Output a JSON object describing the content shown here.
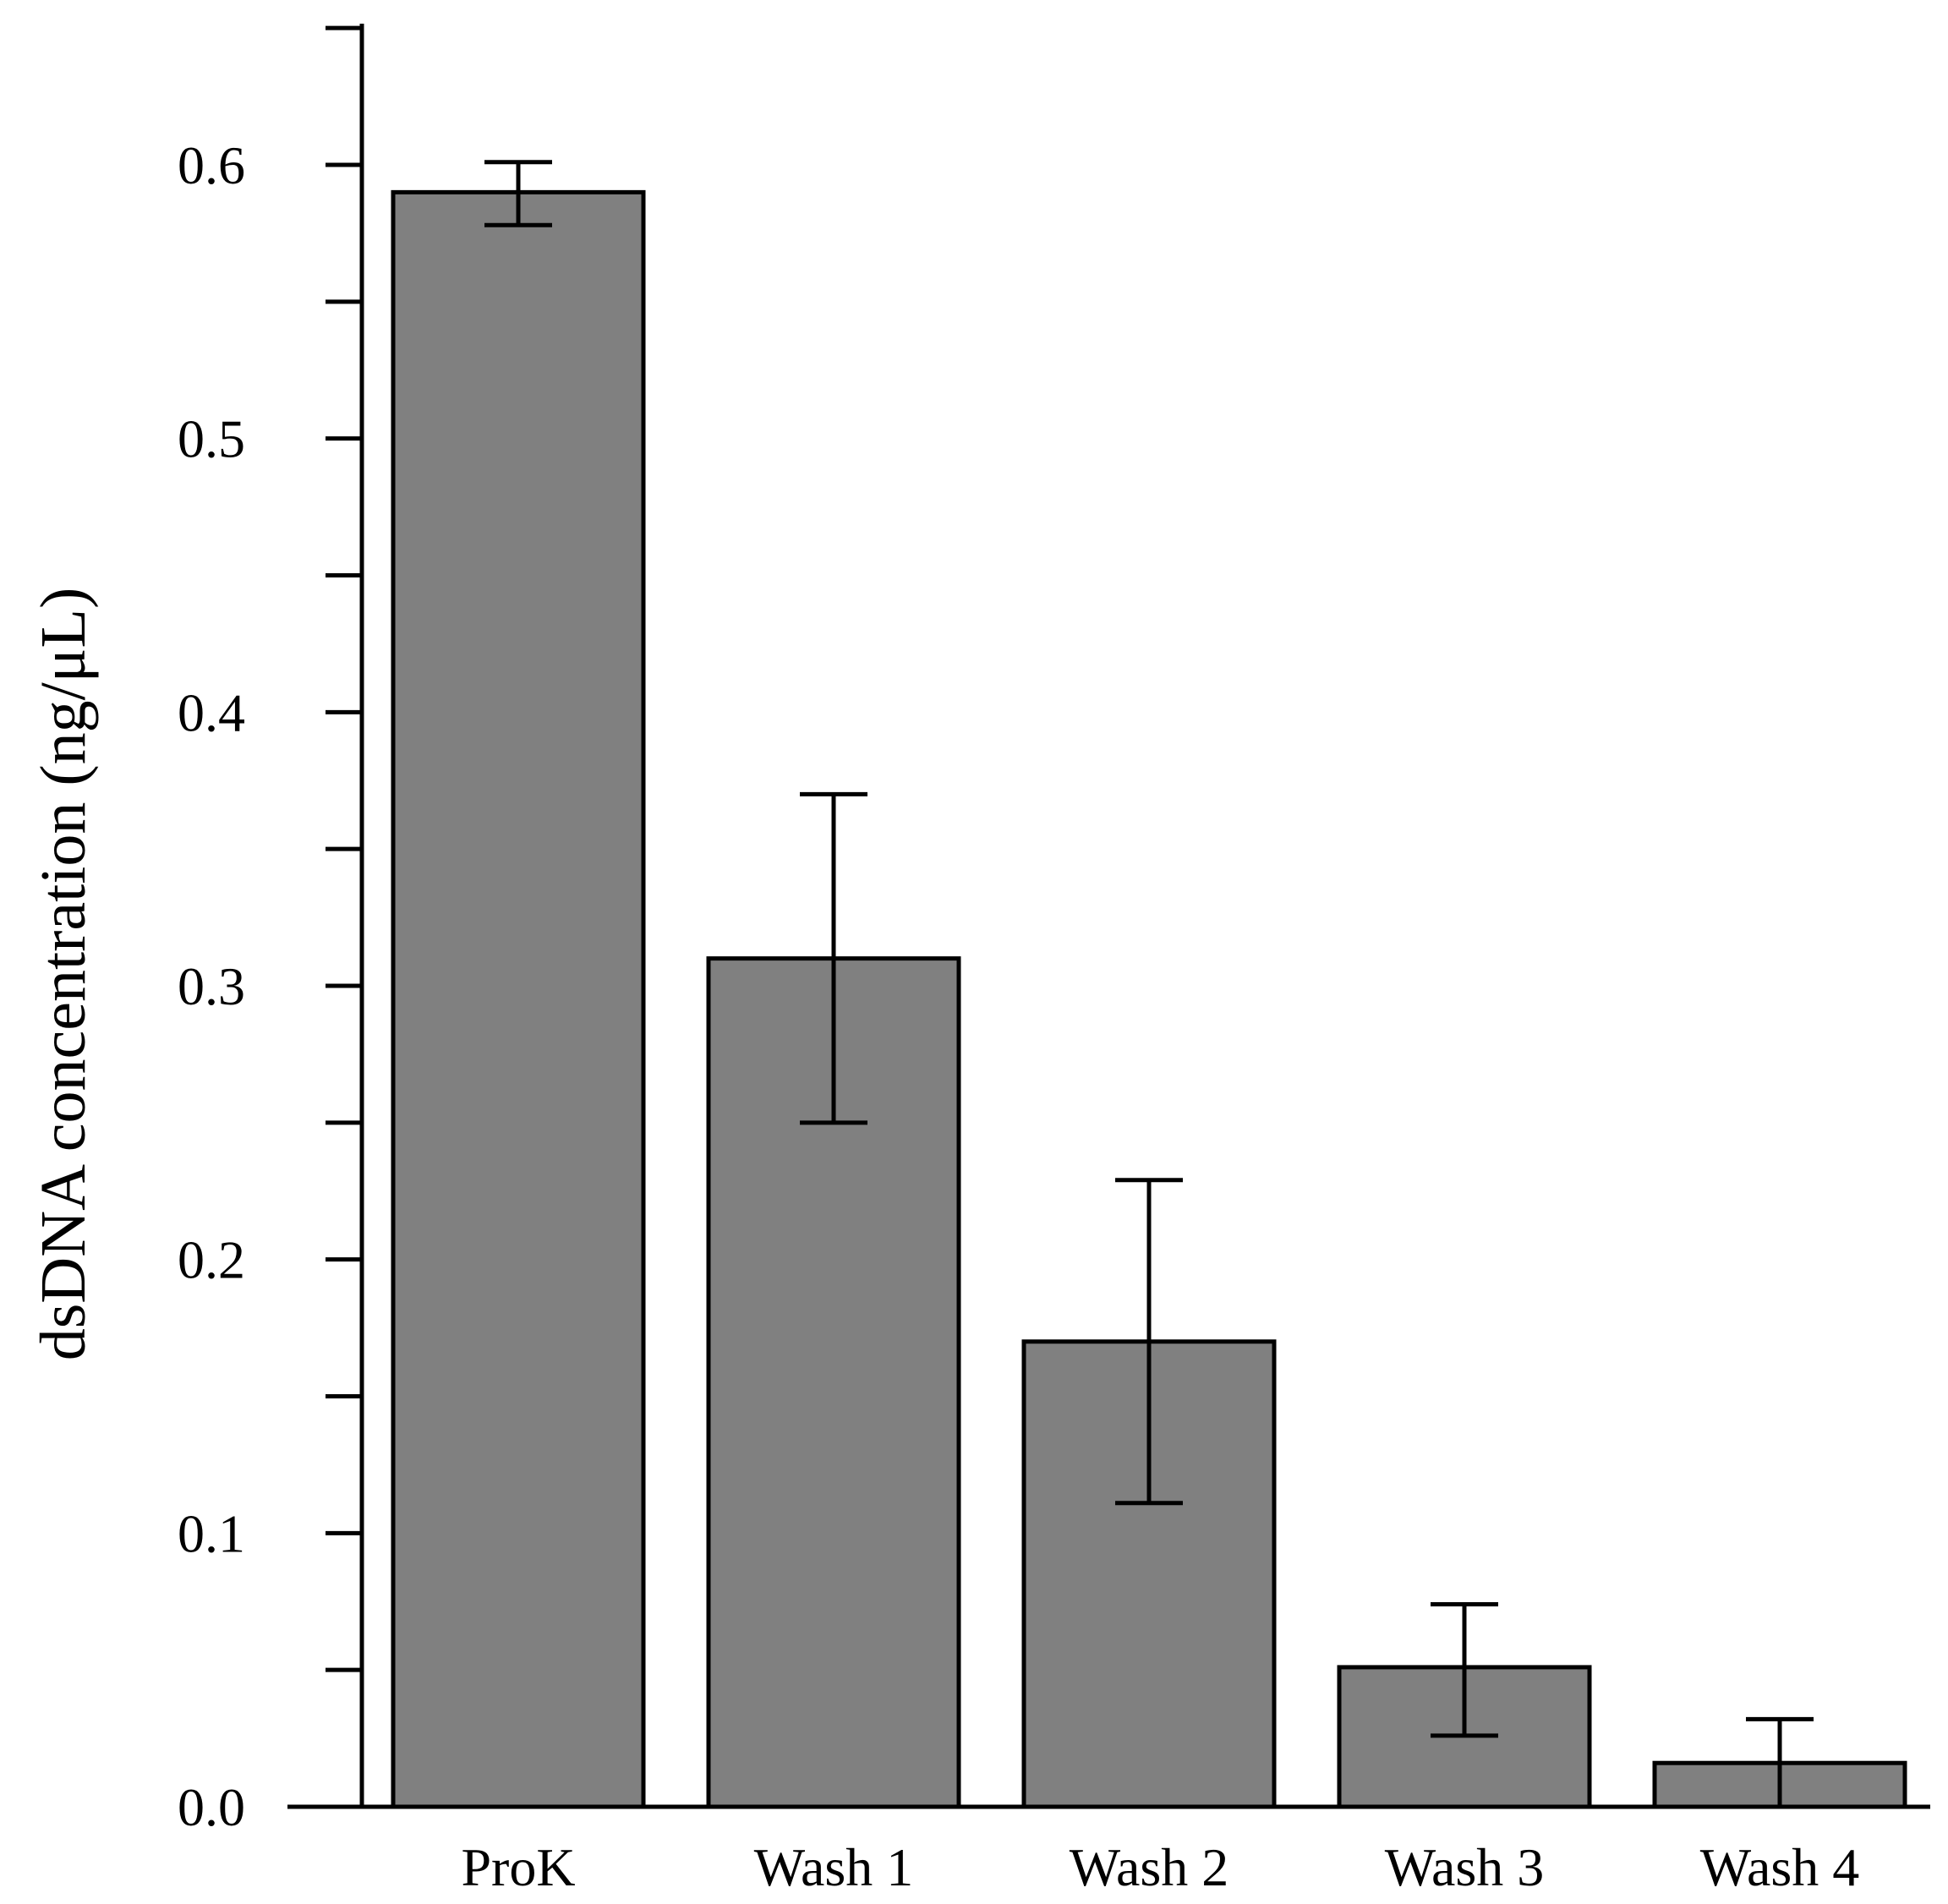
{
  "chart_data": {
    "type": "bar",
    "title": "",
    "xlabel": "",
    "ylabel": "dsDNA concentration (ng/μL)",
    "categories": [
      "ProK",
      "Wash 1",
      "Wash 2",
      "Wash 3",
      "Wash 4"
    ],
    "values": [
      0.59,
      0.31,
      0.17,
      0.051,
      0.016
    ],
    "error_upper": [
      0.601,
      0.37,
      0.229,
      0.074,
      0.032
    ],
    "error_lower": [
      0.578,
      0.25,
      0.111,
      0.026,
      0.0
    ],
    "ylim": [
      0,
      0.65
    ],
    "yticks": [
      0.0,
      0.1,
      0.2,
      0.3,
      0.4,
      0.5,
      0.6
    ],
    "ytick_labels": [
      "0.0",
      "0.1",
      "0.2",
      "0.3",
      "0.4",
      "0.5",
      "0.6"
    ],
    "minor_yticks": [
      0.05,
      0.15,
      0.25,
      0.35,
      0.45,
      0.55,
      0.65
    ],
    "bar_color": "#808080",
    "edge_color": "#000000",
    "grid": false,
    "legend": "none"
  }
}
